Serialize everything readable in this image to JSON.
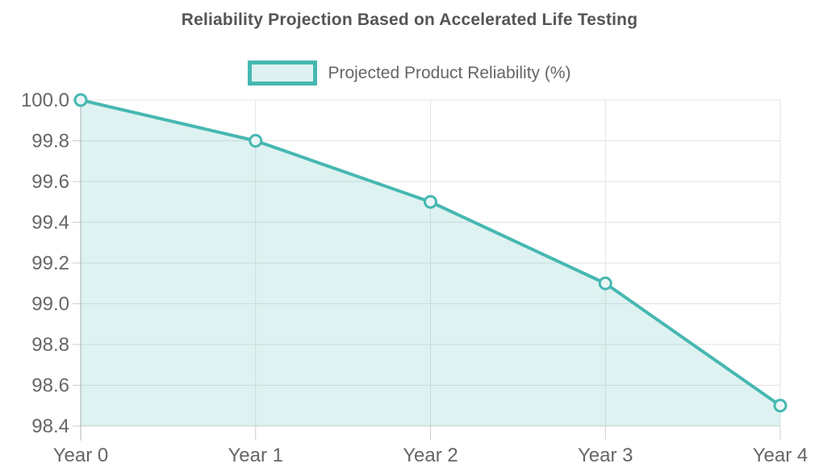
{
  "chart_data": {
    "type": "area",
    "title": "Reliability Projection Based on Accelerated Life Testing",
    "categories": [
      "Year 0",
      "Year 1",
      "Year 2",
      "Year 3",
      "Year 4"
    ],
    "series": [
      {
        "name": "Projected Product Reliability (%)",
        "values": [
          100.0,
          99.8,
          99.5,
          99.1,
          98.5
        ]
      }
    ],
    "xlabel": "",
    "ylabel": "",
    "ylim": [
      98.4,
      100.0
    ],
    "ytick_step": 0.2,
    "ytick_labels": [
      "98.4",
      "98.6",
      "98.8",
      "99.0",
      "99.2",
      "99.4",
      "99.6",
      "99.8",
      "100.0"
    ],
    "grid": true,
    "legend_position": "top",
    "colors": {
      "line": "#46b8b1",
      "fill": "#46b8b1",
      "fill_opacity": 0.18,
      "point_fill": "#e9f6f5",
      "grid": "#e3e3e3",
      "axis": "#b0b0b0",
      "tick": "#cccccc",
      "tick_text": "#666666",
      "title_text": "#555555",
      "background": "#ffffff"
    }
  }
}
